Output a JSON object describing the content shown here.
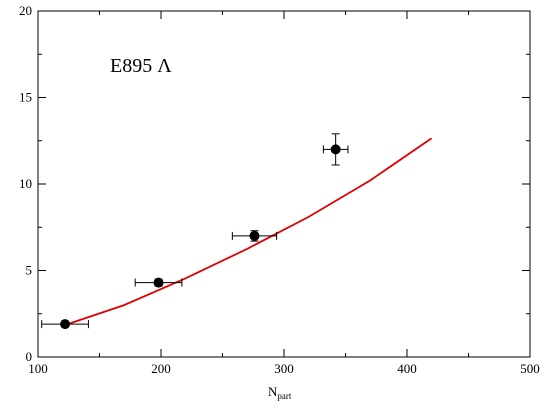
{
  "chart_data": {
    "type": "scatter",
    "annotation": "E895 Λ",
    "xlabel_main": "N",
    "xlabel_sub": "part",
    "ylabel": "",
    "xlim": [
      100,
      500
    ],
    "ylim": [
      0,
      20
    ],
    "x_ticks": [
      100,
      200,
      300,
      400,
      500
    ],
    "y_ticks": [
      0,
      5,
      10,
      15,
      20
    ],
    "x_minor_step": 50,
    "y_minor_step": 2.5,
    "grid": false,
    "points": [
      {
        "x": 122,
        "y": 1.9,
        "xerr": 19,
        "yerr": 0.1
      },
      {
        "x": 198,
        "y": 4.3,
        "xerr": 19,
        "yerr": 0.2
      },
      {
        "x": 276,
        "y": 7.0,
        "xerr": 18,
        "yerr": 0.3
      },
      {
        "x": 342,
        "y": 12.0,
        "xerr": 10,
        "yerr": 0.9
      }
    ],
    "curve": {
      "color": "#e00000",
      "x": [
        122,
        170,
        220,
        270,
        320,
        370,
        420
      ],
      "y": [
        1.85,
        3.0,
        4.55,
        6.25,
        8.1,
        10.2,
        12.65
      ]
    }
  }
}
